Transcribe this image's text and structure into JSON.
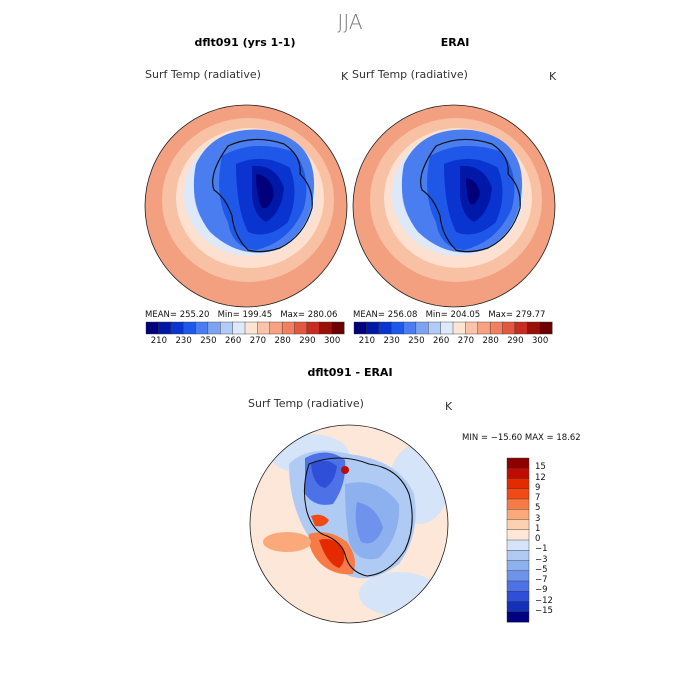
{
  "season": "JJA",
  "panels": [
    {
      "title": "dflt091 (yrs 1-1)",
      "variable": "Surf Temp (radiative)",
      "units": "K",
      "stats": {
        "mean": "MEAN= 255.20",
        "min": "Min= 199.45",
        "max": "Max= 280.06"
      }
    },
    {
      "title": "ERAI",
      "variable": "Surf Temp (radiative)",
      "units": "K",
      "stats": {
        "mean": "MEAN= 256.08",
        "min": "Min= 204.05",
        "max": "Max= 279.77"
      }
    },
    {
      "title": "dflt091 - ERAI",
      "variable": "Surf Temp (radiative)",
      "units": "K",
      "minmax": "MIN = −15.60 MAX =  18.62"
    }
  ],
  "abs_colorbar": {
    "labels": [
      "210",
      "230",
      "250",
      "260",
      "270",
      "280",
      "290",
      "300"
    ],
    "colors": [
      "#00007a",
      "#0018a8",
      "#0a34d0",
      "#1f57e8",
      "#4a7ef0",
      "#7da4f2",
      "#b2cbf5",
      "#dde8f8",
      "#fde3d3",
      "#fbc4a8",
      "#f7a282",
      "#f08060",
      "#e05840",
      "#c62c22",
      "#9a1008",
      "#6a0000"
    ]
  },
  "diff_colorbar": {
    "labels": [
      "15",
      "12",
      "9",
      "7",
      "5",
      "3",
      "1",
      "0",
      "−1",
      "−3",
      "−5",
      "−7",
      "−9",
      "−12",
      "−15"
    ],
    "colors": [
      "#8c0000",
      "#c00c00",
      "#e52a00",
      "#f24a14",
      "#f77b46",
      "#fba97a",
      "#fdd0b0",
      "#fde7d8",
      "#d5e4f8",
      "#b0cbf3",
      "#8db0ef",
      "#6f93ec",
      "#4d72e8",
      "#2f4fd8",
      "#1530b8",
      "#000080"
    ]
  },
  "chart_data": [
    {
      "type": "heatmap",
      "title": "dflt091 (yrs 1-1)",
      "subtitle": "Surf Temp (radiative)",
      "units": "K",
      "projection": "south-polar stereographic",
      "mean": 255.2,
      "min": 199.45,
      "max": 280.06,
      "colorbar_ticks": [
        210,
        230,
        250,
        260,
        270,
        280,
        290,
        300
      ]
    },
    {
      "type": "heatmap",
      "title": "ERAI",
      "subtitle": "Surf Temp (radiative)",
      "units": "K",
      "projection": "south-polar stereographic",
      "mean": 256.08,
      "min": 204.05,
      "max": 279.77,
      "colorbar_ticks": [
        210,
        230,
        250,
        260,
        270,
        280,
        290,
        300
      ]
    },
    {
      "type": "heatmap",
      "title": "dflt091 - ERAI",
      "subtitle": "Surf Temp (radiative)",
      "units": "K",
      "projection": "south-polar stereographic",
      "min": -15.6,
      "max": 18.62,
      "colorbar_ticks": [
        15,
        12,
        9,
        7,
        5,
        3,
        1,
        0,
        -1,
        -3,
        -5,
        -7,
        -9,
        -12,
        -15
      ]
    }
  ]
}
